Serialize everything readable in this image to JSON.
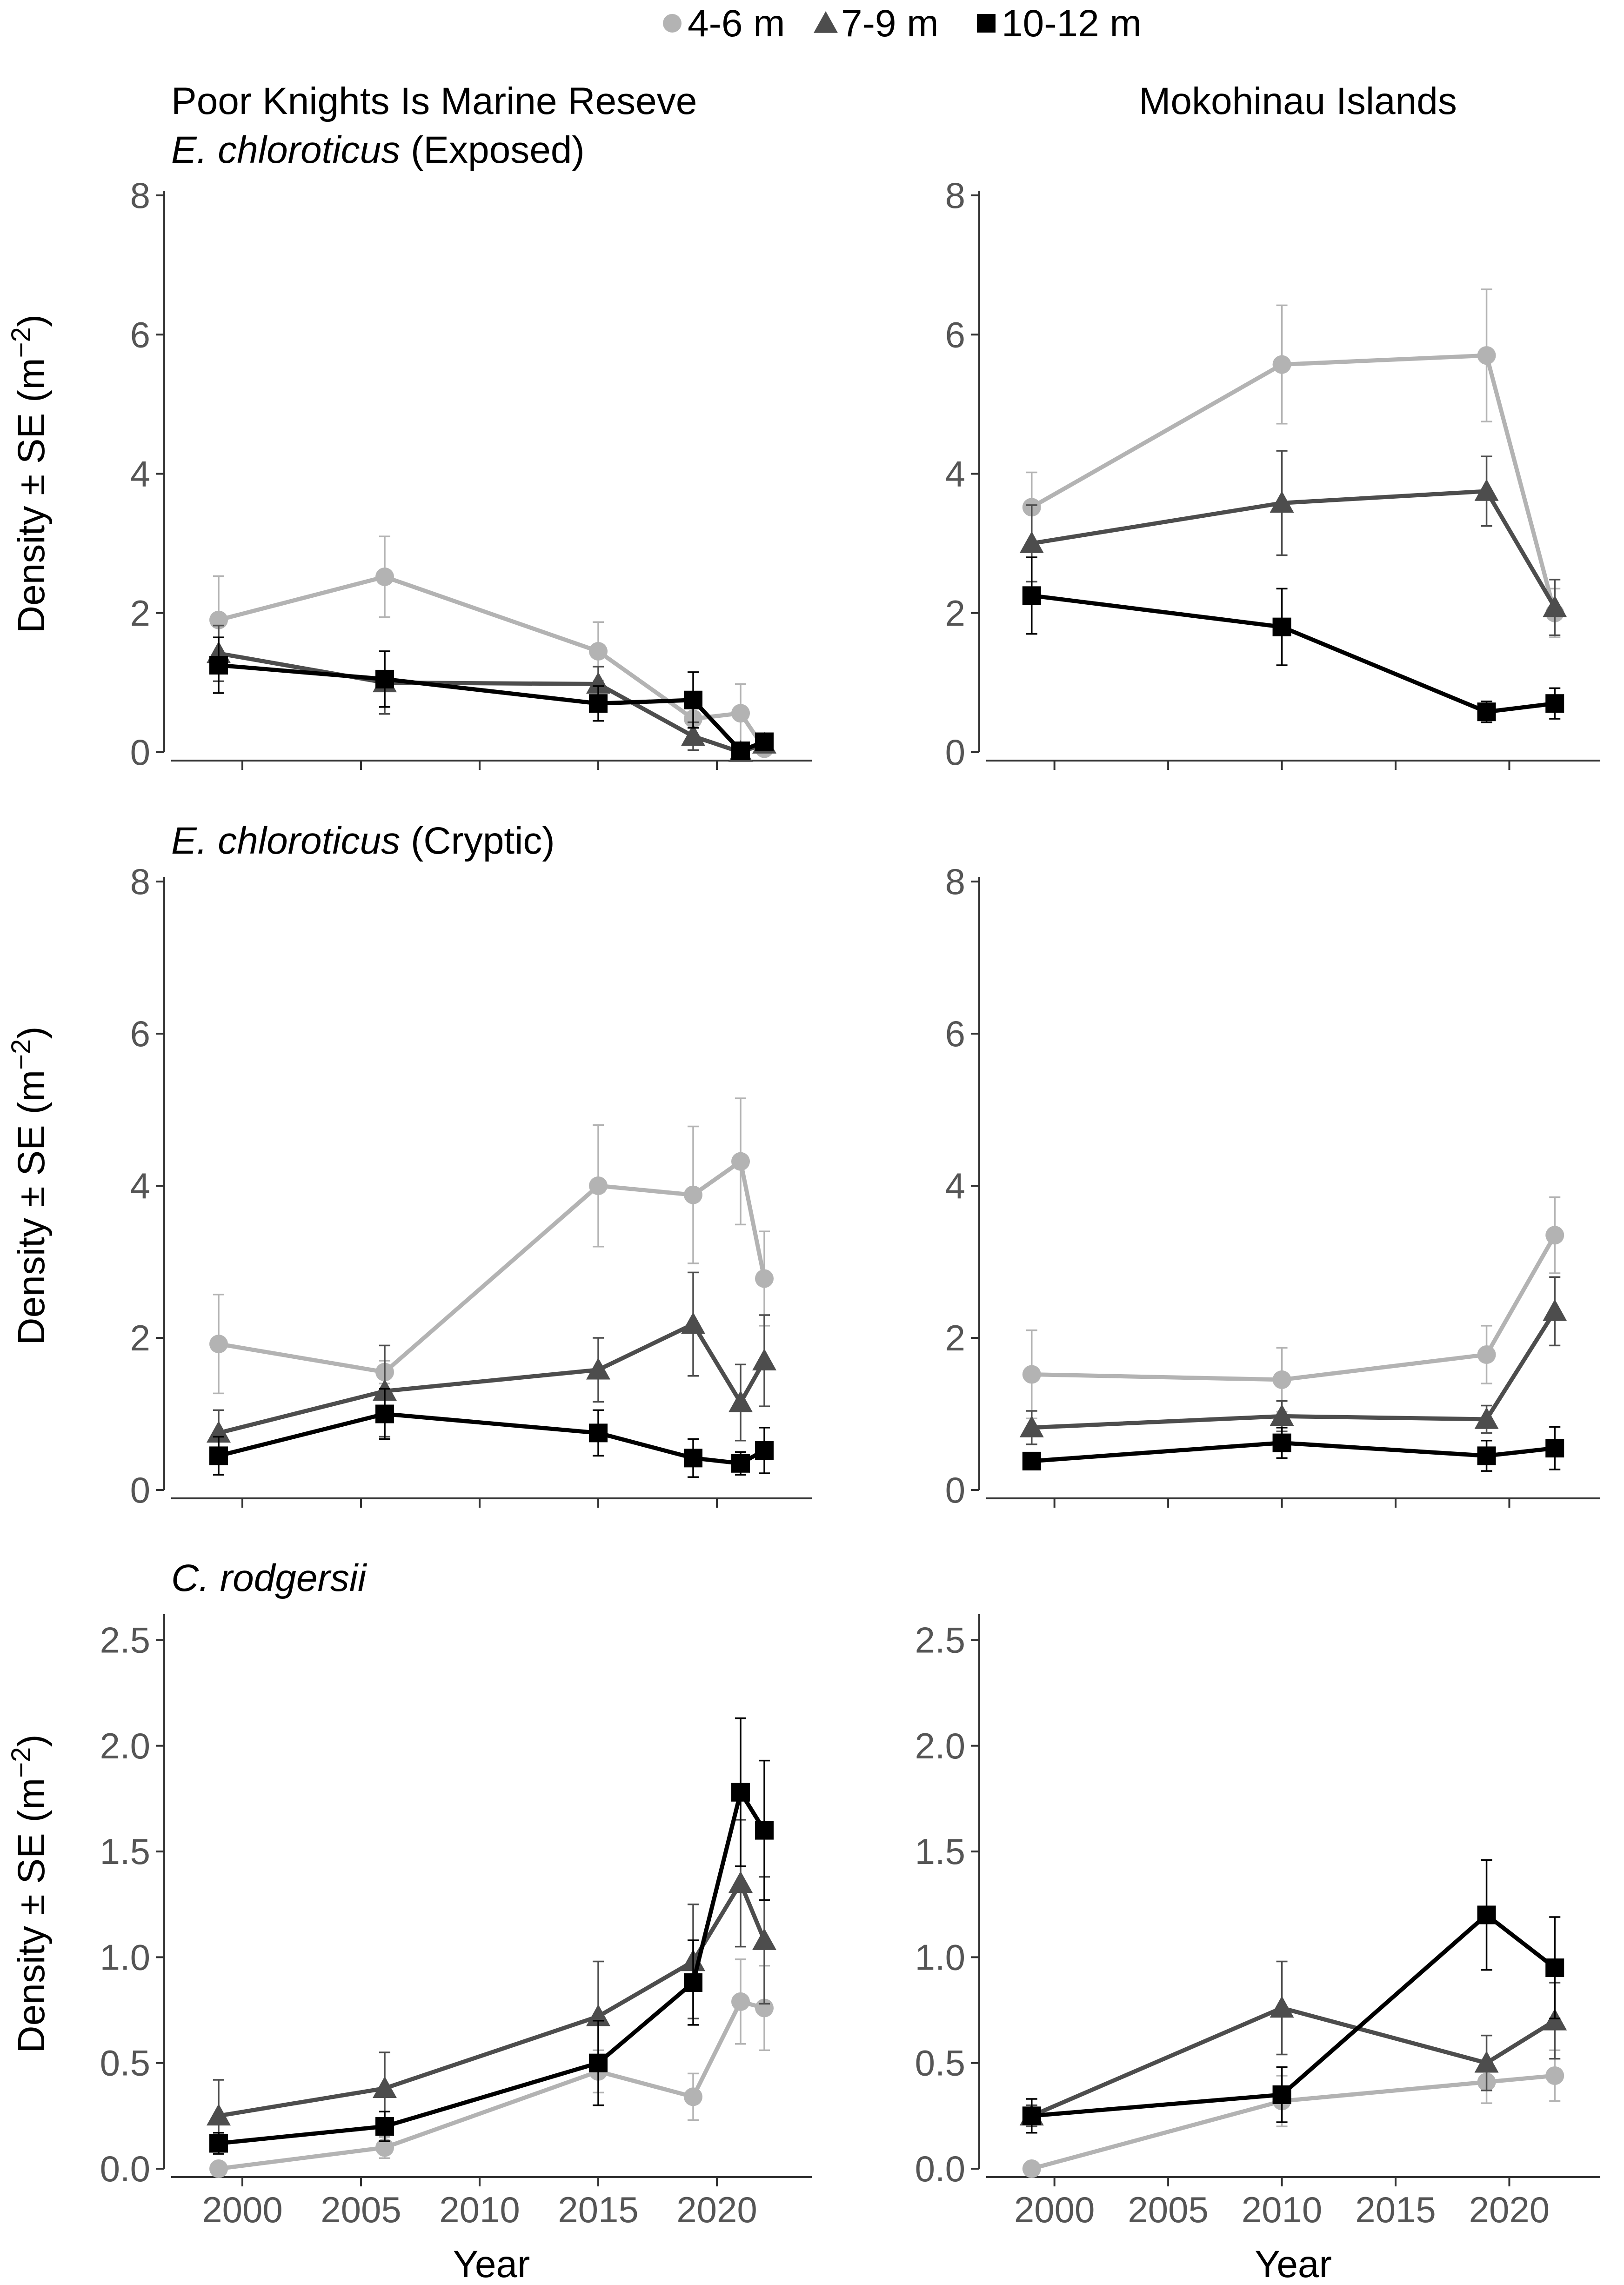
{
  "legend": {
    "items": [
      {
        "label": "4-6 m",
        "marker": "circle",
        "color": "#b3b3b3"
      },
      {
        "label": "7-9 m",
        "marker": "triangle",
        "color": "#4d4d4d"
      },
      {
        "label": "10-12 m",
        "marker": "square",
        "color": "#000000"
      }
    ]
  },
  "column_titles": [
    "Poor Knights Is Marine Reseve",
    "Mokohinau Islands"
  ],
  "row_titles": [
    {
      "italic": "E. chloroticus",
      "normal": " (Exposed)"
    },
    {
      "italic": "E. chloroticus",
      "normal": " (Cryptic)"
    },
    {
      "italic": "C. rodgersii",
      "normal": ""
    }
  ],
  "xlabel": "Year",
  "ylabel_main": "Density ± SE (m",
  "ylabel_sup": "−2",
  "ylabel_close": ")",
  "chart_data": [
    {
      "type": "line",
      "title": "Poor Knights Is Marine Reseve — E. chloroticus (Exposed)",
      "xlabel": "",
      "ylabel": "Density ± SE (m−2)",
      "xlim": [
        1997,
        2024
      ],
      "ylim": [
        0,
        8
      ],
      "yticks": [
        0,
        2,
        4,
        6,
        8
      ],
      "ytick_labels": [
        "0",
        "2",
        "4",
        "6",
        "8"
      ],
      "xticks": [
        2000,
        2005,
        2010,
        2015,
        2020
      ],
      "xtick_labels": [
        "",
        "",
        "",
        "",
        ""
      ],
      "series": [
        {
          "name": "4-6 m",
          "x": [
            1999,
            2006,
            2015,
            2019,
            2021,
            2022
          ],
          "values": [
            1.9,
            2.52,
            1.45,
            0.48,
            0.56,
            0.05
          ],
          "se": [
            0.63,
            0.58,
            0.42,
            0.25,
            0.42,
            0.05
          ]
        },
        {
          "name": "7-9 m",
          "x": [
            1999,
            2006,
            2015,
            2019,
            2021,
            2022
          ],
          "values": [
            1.42,
            1.0,
            0.98,
            0.23,
            0.0,
            0.12
          ],
          "se": [
            0.4,
            0.45,
            0.25,
            0.2,
            0.02,
            0.1
          ]
        },
        {
          "name": "10-12 m",
          "x": [
            1999,
            2006,
            2015,
            2019,
            2021,
            2022
          ],
          "values": [
            1.25,
            1.05,
            0.7,
            0.75,
            0.02,
            0.15
          ],
          "se": [
            0.4,
            0.4,
            0.25,
            0.4,
            0.04,
            0.08
          ]
        }
      ]
    },
    {
      "type": "line",
      "title": "Mokohinau Islands — E. chloroticus (Exposed)",
      "xlabel": "",
      "ylabel": "",
      "xlim": [
        1997,
        2024
      ],
      "ylim": [
        0,
        8
      ],
      "yticks": [
        0,
        2,
        4,
        6,
        8
      ],
      "ytick_labels": [
        "0",
        "2",
        "4",
        "6",
        "8"
      ],
      "xticks": [
        2000,
        2005,
        2010,
        2015,
        2020
      ],
      "xtick_labels": [
        "",
        "",
        "",
        "",
        ""
      ],
      "series": [
        {
          "name": "4-6 m",
          "x": [
            1999,
            2010,
            2019,
            2022
          ],
          "values": [
            3.52,
            5.57,
            5.7,
            2.0
          ],
          "se": [
            0.5,
            0.85,
            0.95,
            0.35
          ]
        },
        {
          "name": "7-9 m",
          "x": [
            1999,
            2010,
            2019,
            2022
          ],
          "values": [
            3.0,
            3.58,
            3.75,
            2.08
          ],
          "se": [
            0.55,
            0.75,
            0.5,
            0.4
          ]
        },
        {
          "name": "10-12 m",
          "x": [
            1999,
            2010,
            2019,
            2022
          ],
          "values": [
            2.25,
            1.8,
            0.58,
            0.7
          ],
          "se": [
            0.55,
            0.55,
            0.15,
            0.22
          ]
        }
      ]
    },
    {
      "type": "line",
      "title": "Poor Knights Is Marine Reseve — E. chloroticus (Cryptic)",
      "xlabel": "",
      "ylabel": "Density ± SE (m−2)",
      "xlim": [
        1997,
        2024
      ],
      "ylim": [
        0,
        8
      ],
      "yticks": [
        0,
        2,
        4,
        6,
        8
      ],
      "ytick_labels": [
        "0",
        "2",
        "4",
        "6",
        "8"
      ],
      "xticks": [
        2000,
        2005,
        2010,
        2015,
        2020
      ],
      "xtick_labels": [
        "",
        "",
        "",
        "",
        ""
      ],
      "series": [
        {
          "name": "4-6 m",
          "x": [
            1999,
            2006,
            2015,
            2019,
            2021,
            2022
          ],
          "values": [
            1.92,
            1.55,
            4.0,
            3.88,
            4.32,
            2.78
          ],
          "se": [
            0.65,
            0.15,
            0.8,
            0.9,
            0.83,
            0.62
          ]
        },
        {
          "name": "7-9 m",
          "x": [
            1999,
            2006,
            2015,
            2019,
            2021,
            2022
          ],
          "values": [
            0.75,
            1.3,
            1.58,
            2.18,
            1.15,
            1.7
          ],
          "se": [
            0.3,
            0.6,
            0.42,
            0.68,
            0.5,
            0.6
          ]
        },
        {
          "name": "10-12 m",
          "x": [
            1999,
            2006,
            2015,
            2019,
            2021,
            2022
          ],
          "values": [
            0.45,
            1.0,
            0.75,
            0.42,
            0.35,
            0.52
          ],
          "se": [
            0.25,
            0.33,
            0.3,
            0.25,
            0.15,
            0.3
          ]
        }
      ]
    },
    {
      "type": "line",
      "title": "Mokohinau Islands — E. chloroticus (Cryptic)",
      "xlabel": "",
      "ylabel": "",
      "xlim": [
        1997,
        2024
      ],
      "ylim": [
        0,
        8
      ],
      "yticks": [
        0,
        2,
        4,
        6,
        8
      ],
      "ytick_labels": [
        "0",
        "2",
        "4",
        "6",
        "8"
      ],
      "xticks": [
        2000,
        2005,
        2010,
        2015,
        2020
      ],
      "xtick_labels": [
        "",
        "",
        "",
        "",
        ""
      ],
      "series": [
        {
          "name": "4-6 m",
          "x": [
            1999,
            2010,
            2019,
            2022
          ],
          "values": [
            1.52,
            1.45,
            1.78,
            3.35
          ],
          "se": [
            0.58,
            0.42,
            0.38,
            0.5
          ]
        },
        {
          "name": "7-9 m",
          "x": [
            1999,
            2010,
            2019,
            2022
          ],
          "values": [
            0.82,
            0.97,
            0.93,
            2.35
          ],
          "se": [
            0.22,
            0.2,
            0.18,
            0.45
          ]
        },
        {
          "name": "10-12 m",
          "x": [
            1999,
            2010,
            2019,
            2022
          ],
          "values": [
            0.38,
            0.62,
            0.45,
            0.55
          ],
          "se": [
            0.08,
            0.2,
            0.2,
            0.28
          ]
        }
      ]
    },
    {
      "type": "line",
      "title": "Poor Knights Is Marine Reseve — C. rodgersii",
      "xlabel": "Year",
      "ylabel": "Density ± SE (m−2)",
      "xlim": [
        1997,
        2024
      ],
      "ylim": [
        0,
        2.6
      ],
      "yticks": [
        0,
        0.5,
        1.0,
        1.5,
        2.0,
        2.5
      ],
      "ytick_labels": [
        "0.0",
        "0.5",
        "1.0",
        "1.5",
        "2.0",
        "2.5"
      ],
      "xticks": [
        2000,
        2005,
        2010,
        2015,
        2020
      ],
      "xtick_labels": [
        "2000",
        "2005",
        "2010",
        "2015",
        "2020"
      ],
      "series": [
        {
          "name": "4-6 m",
          "x": [
            1999,
            2006,
            2015,
            2019,
            2021,
            2022
          ],
          "values": [
            0.0,
            0.1,
            0.46,
            0.34,
            0.79,
            0.76
          ],
          "se": [
            0.0,
            0.05,
            0.1,
            0.11,
            0.2,
            0.2
          ]
        },
        {
          "name": "7-9 m",
          "x": [
            1999,
            2006,
            2015,
            2019,
            2021,
            2022
          ],
          "values": [
            0.25,
            0.38,
            0.72,
            0.98,
            1.35,
            1.08
          ],
          "se": [
            0.17,
            0.17,
            0.26,
            0.27,
            0.3,
            0.3
          ]
        },
        {
          "name": "10-12 m",
          "x": [
            1999,
            2006,
            2015,
            2019,
            2021,
            2022
          ],
          "values": [
            0.12,
            0.2,
            0.5,
            0.88,
            1.78,
            1.6
          ],
          "se": [
            0.05,
            0.07,
            0.2,
            0.2,
            0.35,
            0.33
          ]
        }
      ]
    },
    {
      "type": "line",
      "title": "Mokohinau Islands — C. rodgersii",
      "xlabel": "Year",
      "ylabel": "",
      "xlim": [
        1997,
        2024
      ],
      "ylim": [
        0,
        2.6
      ],
      "yticks": [
        0,
        0.5,
        1.0,
        1.5,
        2.0,
        2.5
      ],
      "ytick_labels": [
        "0.0",
        "0.5",
        "1.0",
        "1.5",
        "2.0",
        "2.5"
      ],
      "xticks": [
        2000,
        2005,
        2010,
        2015,
        2020
      ],
      "xtick_labels": [
        "2000",
        "2005",
        "2010",
        "2015",
        "2020"
      ],
      "series": [
        {
          "name": "4-6 m",
          "x": [
            1999,
            2010,
            2019,
            2022
          ],
          "values": [
            0.0,
            0.32,
            0.41,
            0.44
          ],
          "se": [
            0.0,
            0.12,
            0.1,
            0.12
          ]
        },
        {
          "name": "7-9 m",
          "x": [
            1999,
            2010,
            2019,
            2022
          ],
          "values": [
            0.25,
            0.76,
            0.5,
            0.7
          ],
          "se": [
            0.05,
            0.22,
            0.13,
            0.18
          ]
        },
        {
          "name": "10-12 m",
          "x": [
            1999,
            2010,
            2019,
            2022
          ],
          "values": [
            0.25,
            0.35,
            1.2,
            0.95
          ],
          "se": [
            0.08,
            0.13,
            0.26,
            0.24
          ]
        }
      ]
    }
  ]
}
